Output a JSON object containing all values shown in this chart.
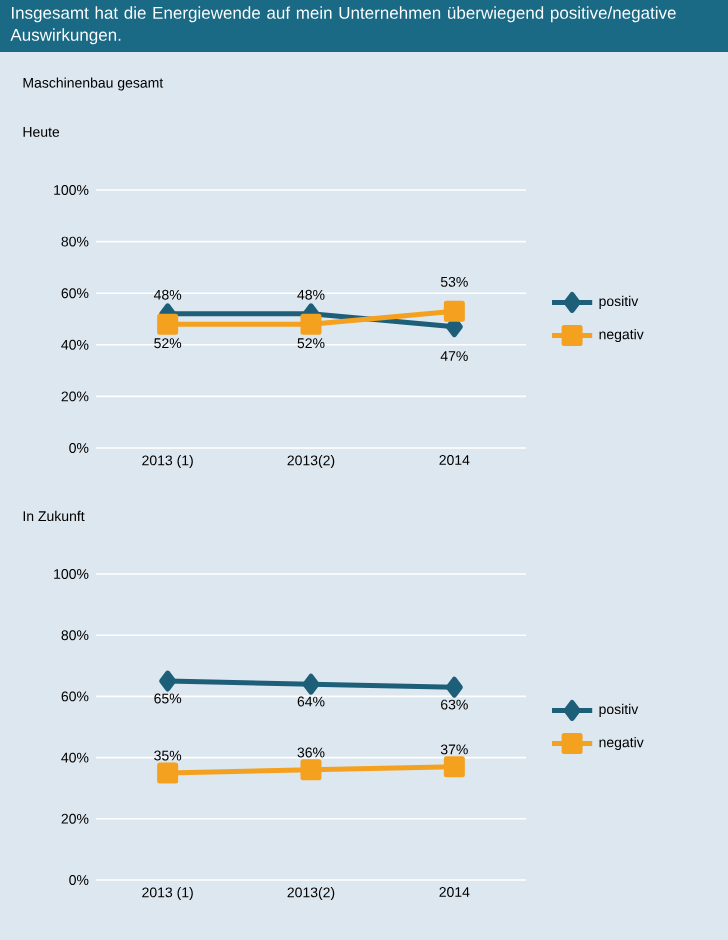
{
  "chart_data": [
    {
      "type": "line",
      "title": "Insgesamt hat die Energiewende auf mein Unternehmen überwiegend positive/negative Auswirkungen.",
      "subtitle": "Maschinenbau gesamt",
      "ylabel": "Heute",
      "categories": [
        "2013 (1)",
        "2013(2)",
        "2014"
      ],
      "series": [
        {
          "name": "positiv",
          "color": "#1d5f78",
          "marker": "diamond",
          "values": [
            52,
            52,
            47
          ],
          "value_labels": [
            "52%",
            "52%",
            "47%"
          ]
        },
        {
          "name": "negativ",
          "color": "#f4a11f",
          "marker": "square",
          "values": [
            48,
            48,
            53
          ],
          "value_labels": [
            "48%",
            "48%",
            "53%"
          ]
        }
      ],
      "ylim": [
        0,
        100
      ],
      "yticks": [
        {
          "value": 0,
          "label": "0%"
        },
        {
          "value": 20,
          "label": "20%"
        },
        {
          "value": 40,
          "label": "40%"
        },
        {
          "value": 60,
          "label": "60%"
        },
        {
          "value": 80,
          "label": "80%"
        },
        {
          "value": 100,
          "label": "100%"
        }
      ],
      "grid": "y",
      "legend": "right",
      "line_style": "solid"
    },
    {
      "type": "line",
      "ylabel": "In Zukunft",
      "categories": [
        "2013 (1)",
        "2013(2)",
        "2014"
      ],
      "series": [
        {
          "name": "positiv",
          "color": "#1d5f78",
          "marker": "diamond",
          "values": [
            65,
            64,
            63
          ],
          "value_labels": [
            "65%",
            "64%",
            "63%"
          ]
        },
        {
          "name": "negativ",
          "color": "#f4a11f",
          "marker": "square",
          "values": [
            35,
            36,
            37
          ],
          "value_labels": [
            "35%",
            "36%",
            "37%"
          ]
        }
      ],
      "ylim": [
        0,
        100
      ],
      "yticks": [
        {
          "value": 0,
          "label": "0%"
        },
        {
          "value": 20,
          "label": "20%"
        },
        {
          "value": 40,
          "label": "40%"
        },
        {
          "value": 60,
          "label": "60%"
        },
        {
          "value": 80,
          "label": "80%"
        },
        {
          "value": 100,
          "label": "100%"
        }
      ],
      "grid": "y",
      "legend": "right",
      "line_style": "solid"
    }
  ]
}
